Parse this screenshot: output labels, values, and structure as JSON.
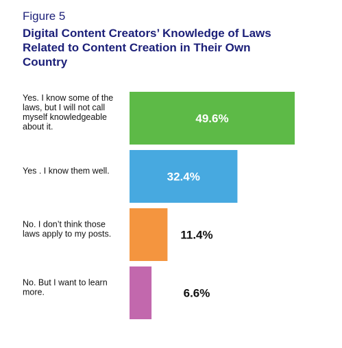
{
  "figure_label": "Figure 5",
  "chart_data": {
    "type": "bar",
    "orientation": "horizontal",
    "title": "Digital Content Creators’ Knowledge of Laws Related to Content Creation in Their Own Country",
    "title_lines": [
      "Digital Content Creators’ Knowledge of Laws",
      "Related to Content Creation in Their Own",
      "Country"
    ],
    "xlabel": "",
    "ylabel": "",
    "grid": false,
    "legend": "none",
    "unit": "%",
    "categories": [
      [
        "Yes. I know some of the",
        "laws, but I will not call",
        "myself knowledgeable",
        "about it."
      ],
      [
        "Yes . I know them well."
      ],
      [
        "No. I don’t think those",
        "laws apply to my posts."
      ],
      [
        "No. But I want to learn",
        "more."
      ]
    ],
    "values": [
      49.6,
      32.4,
      11.4,
      6.6
    ],
    "value_labels": [
      "49.6%",
      "32.4%",
      "11.4%",
      "6.6%"
    ],
    "colors": [
      "#5dba47",
      "#47a9e0",
      "#f4953f",
      "#c268ad"
    ]
  }
}
